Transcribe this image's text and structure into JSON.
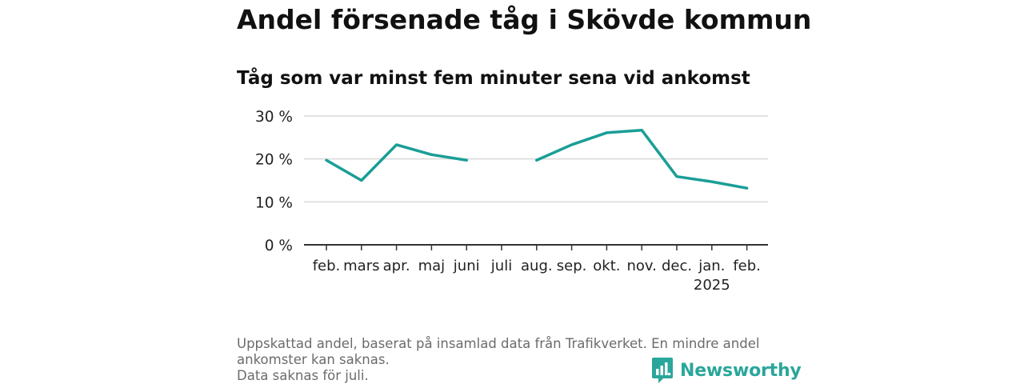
{
  "header": {
    "title": "Andel försenade tåg i Skövde kommun",
    "subtitle": "Tåg som var minst fem minuter sena vid ankomst"
  },
  "chart_data": {
    "type": "line",
    "title": "Andel försenade tåg i Skövde kommun",
    "subtitle": "Tåg som var minst fem minuter sena vid ankomst",
    "categories": [
      "feb.",
      "mars",
      "apr.",
      "maj",
      "juni",
      "juli",
      "aug.",
      "sep.",
      "okt.",
      "nov.",
      "dec.",
      "jan.",
      "feb."
    ],
    "category_sublabels": [
      "",
      "",
      "",
      "",
      "",
      "",
      "",
      "",
      "",
      "",
      "",
      "2025",
      ""
    ],
    "series": [
      {
        "values": [
          19.7,
          15.0,
          23.3,
          21.0,
          19.7,
          null,
          19.7,
          23.3,
          26.1,
          26.7,
          15.9,
          14.7,
          13.2
        ]
      }
    ],
    "y_ticks": [
      0,
      10,
      20,
      30
    ],
    "y_tick_labels": [
      "0 %",
      "10 %",
      "20 %",
      "30 %"
    ],
    "ylim": [
      0,
      30
    ],
    "grid": true,
    "legend": "none",
    "colors": {
      "line": "#1a9e96",
      "grid": "#d9d9d9",
      "axis": "#333333"
    }
  },
  "footnote": {
    "lines": [
      "Uppskattad andel, baserat på insamlad data från Trafikverket. En mindre andel",
      "ankomster kan saknas.",
      "Data saknas för juli."
    ]
  },
  "brand": {
    "name": "Newsworthy",
    "icon": "newsworthy-logo-icon",
    "color": "#2aa69b"
  }
}
